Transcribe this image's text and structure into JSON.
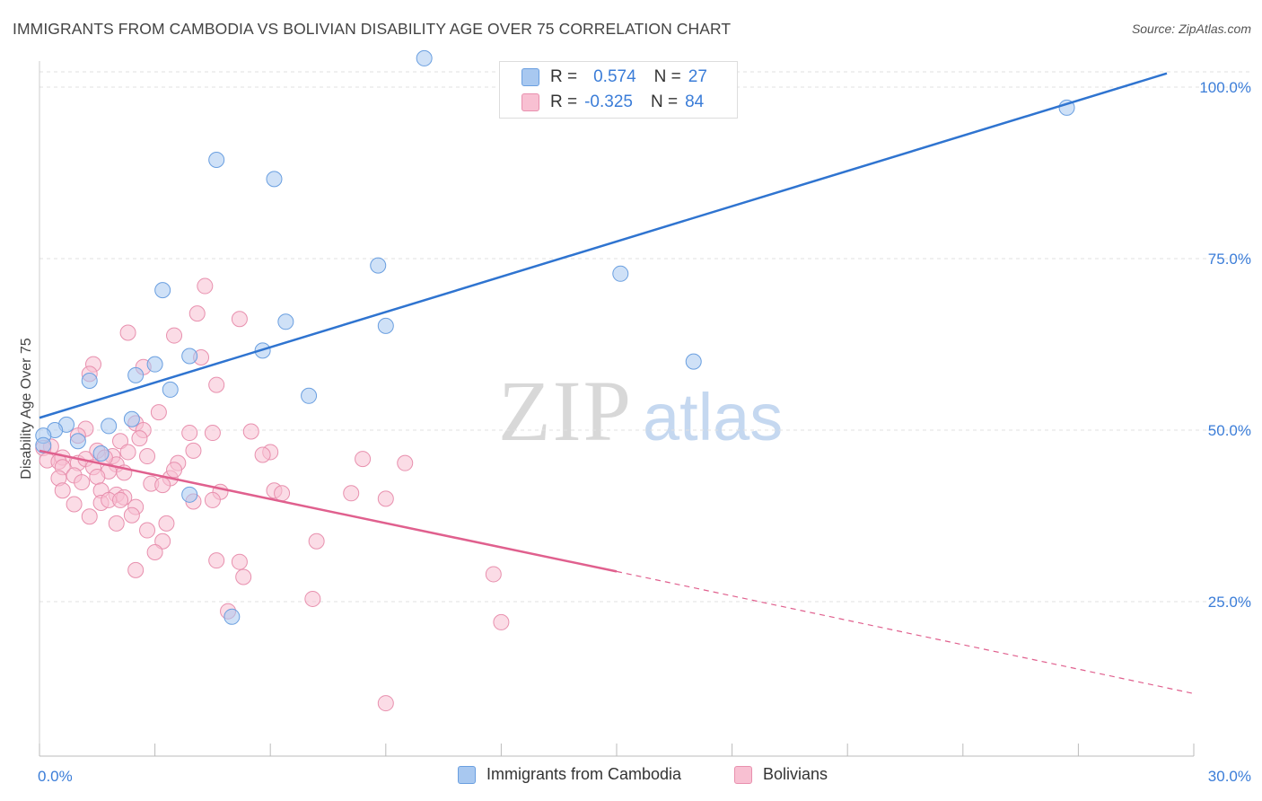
{
  "title": "IMMIGRANTS FROM CAMBODIA VS BOLIVIAN DISABILITY AGE OVER 75 CORRELATION CHART",
  "source": "Source: ZipAtlas.com",
  "watermark": {
    "zip": "ZIP",
    "atlas": "atlas"
  },
  "legend": {
    "rows": [
      {
        "r_label": "R =",
        "r_value": "0.574",
        "n_label": "N =",
        "n_value": "27",
        "color": "#a8c8f0",
        "border": "#6a9fe0"
      },
      {
        "r_label": "R =",
        "r_value": "-0.325",
        "n_label": "N =",
        "n_value": "84",
        "color": "#f8c0d2",
        "border": "#e890ae"
      }
    ]
  },
  "bottom_legend": [
    {
      "label": "Immigrants from Cambodia",
      "color": "#a8c8f0",
      "border": "#6a9fe0"
    },
    {
      "label": "Bolivians",
      "color": "#f8c0d2",
      "border": "#e890ae"
    }
  ],
  "chart_data": {
    "type": "scatter",
    "title": "IMMIGRANTS FROM CAMBODIA VS BOLIVIAN DISABILITY AGE OVER 75 CORRELATION CHART",
    "xlabel": "",
    "ylabel": "Disability Age Over 75",
    "xlim": [
      0,
      30
    ],
    "ylim": [
      0,
      100
    ],
    "x_tick_labels": [
      "0.0%",
      "30.0%"
    ],
    "y_tick_labels": [
      "25.0%",
      "50.0%",
      "75.0%",
      "100.0%"
    ],
    "y_ticks": [
      25,
      50,
      75,
      100
    ],
    "grid": true,
    "series": [
      {
        "name": "Immigrants from Cambodia",
        "color": "#a8c8f0",
        "stroke": "#6a9fe0",
        "line_color": "#2f74d0",
        "points": [
          [
            10.0,
            104.2
          ],
          [
            26.7,
            97.0
          ],
          [
            4.6,
            89.4
          ],
          [
            6.1,
            86.6
          ],
          [
            8.8,
            74.0
          ],
          [
            15.1,
            72.8
          ],
          [
            3.2,
            70.4
          ],
          [
            6.4,
            65.8
          ],
          [
            9.0,
            65.2
          ],
          [
            5.8,
            61.6
          ],
          [
            3.9,
            60.8
          ],
          [
            1.3,
            57.2
          ],
          [
            2.5,
            58.0
          ],
          [
            3.0,
            59.6
          ],
          [
            17.0,
            60.0
          ],
          [
            7.0,
            55.0
          ],
          [
            3.4,
            55.9
          ],
          [
            2.4,
            51.6
          ],
          [
            1.8,
            50.6
          ],
          [
            0.7,
            50.8
          ],
          [
            0.4,
            50.0
          ],
          [
            0.1,
            49.2
          ],
          [
            0.1,
            47.8
          ],
          [
            1.0,
            48.4
          ],
          [
            1.6,
            46.6
          ],
          [
            3.9,
            40.6
          ],
          [
            5.0,
            22.8
          ]
        ],
        "trend": {
          "x": [
            0,
            29.3
          ],
          "y": [
            51.8,
            102.0
          ],
          "dashed_to": null
        }
      },
      {
        "name": "Bolivians",
        "color": "#f8c0d2",
        "stroke": "#e890ae",
        "line_color": "#e0608e",
        "points": [
          [
            4.3,
            71.0
          ],
          [
            4.1,
            67.0
          ],
          [
            5.2,
            66.2
          ],
          [
            2.3,
            64.2
          ],
          [
            3.5,
            63.8
          ],
          [
            4.2,
            60.6
          ],
          [
            1.4,
            59.6
          ],
          [
            2.7,
            59.2
          ],
          [
            1.3,
            58.2
          ],
          [
            4.6,
            56.6
          ],
          [
            3.1,
            52.6
          ],
          [
            2.5,
            51.0
          ],
          [
            1.2,
            50.2
          ],
          [
            2.7,
            50.0
          ],
          [
            3.9,
            49.6
          ],
          [
            4.5,
            49.6
          ],
          [
            5.5,
            49.8
          ],
          [
            1.0,
            49.2
          ],
          [
            2.6,
            48.8
          ],
          [
            2.1,
            48.4
          ],
          [
            0.3,
            47.6
          ],
          [
            0.1,
            47.4
          ],
          [
            1.5,
            47.0
          ],
          [
            2.3,
            46.8
          ],
          [
            4.0,
            47.0
          ],
          [
            6.0,
            46.8
          ],
          [
            1.9,
            46.2
          ],
          [
            2.8,
            46.2
          ],
          [
            0.6,
            46.0
          ],
          [
            0.2,
            45.6
          ],
          [
            0.5,
            45.4
          ],
          [
            1.0,
            45.2
          ],
          [
            1.2,
            45.8
          ],
          [
            3.6,
            45.2
          ],
          [
            2.0,
            45.0
          ],
          [
            8.4,
            45.8
          ],
          [
            9.5,
            45.2
          ],
          [
            0.6,
            44.6
          ],
          [
            1.4,
            44.6
          ],
          [
            1.8,
            44.0
          ],
          [
            2.2,
            43.8
          ],
          [
            0.9,
            43.4
          ],
          [
            0.5,
            43.0
          ],
          [
            1.5,
            43.2
          ],
          [
            3.4,
            43.0
          ],
          [
            1.1,
            42.4
          ],
          [
            2.9,
            42.2
          ],
          [
            3.2,
            42.0
          ],
          [
            0.6,
            41.2
          ],
          [
            1.6,
            41.2
          ],
          [
            6.1,
            41.2
          ],
          [
            4.7,
            41.0
          ],
          [
            2.0,
            40.6
          ],
          [
            2.2,
            40.2
          ],
          [
            6.3,
            40.8
          ],
          [
            8.1,
            40.8
          ],
          [
            0.9,
            39.2
          ],
          [
            1.6,
            39.4
          ],
          [
            1.8,
            39.8
          ],
          [
            2.1,
            39.8
          ],
          [
            4.0,
            39.6
          ],
          [
            4.5,
            39.8
          ],
          [
            9.0,
            40.0
          ],
          [
            2.5,
            38.8
          ],
          [
            1.3,
            37.4
          ],
          [
            2.4,
            37.6
          ],
          [
            3.3,
            36.4
          ],
          [
            2.0,
            36.4
          ],
          [
            2.8,
            35.4
          ],
          [
            3.2,
            33.8
          ],
          [
            3.0,
            32.2
          ],
          [
            7.2,
            33.8
          ],
          [
            4.6,
            31.0
          ],
          [
            5.2,
            30.8
          ],
          [
            2.5,
            29.6
          ],
          [
            5.3,
            28.6
          ],
          [
            11.8,
            29.0
          ],
          [
            7.1,
            25.4
          ],
          [
            4.9,
            23.6
          ],
          [
            12.0,
            22.0
          ],
          [
            9.0,
            10.2
          ],
          [
            5.8,
            46.4
          ],
          [
            3.5,
            44.2
          ],
          [
            1.7,
            46.0
          ]
        ],
        "trend": {
          "x": [
            0,
            15.0
          ],
          "y": [
            47.0,
            29.4
          ],
          "dashed_to": {
            "x": 30,
            "y": 11.6
          }
        }
      }
    ]
  }
}
